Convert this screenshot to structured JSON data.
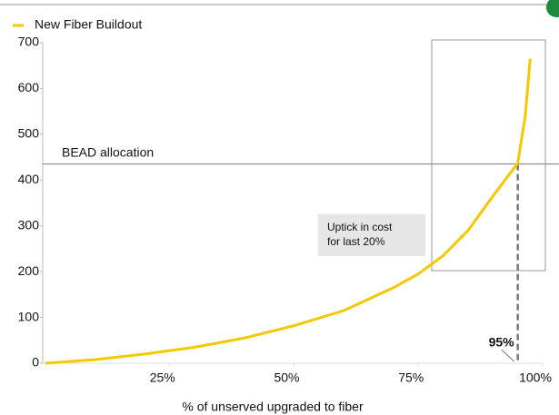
{
  "chart_data": {
    "type": "line",
    "x_label": "% of unserved upgraded to fiber",
    "x": [
      0,
      10,
      20,
      30,
      40,
      50,
      60,
      70,
      75,
      80,
      85,
      90,
      95,
      96.5,
      97.5
    ],
    "series": [
      {
        "name": "New Fiber Buildout",
        "color": "#f5c800",
        "values": [
          0,
          8,
          20,
          35,
          55,
          82,
          115,
          165,
          195,
          235,
          290,
          365,
          437,
          540,
          665
        ]
      }
    ],
    "xlim": [
      0,
      100
    ],
    "xticks": [
      {
        "value": 25,
        "label": "25%"
      },
      {
        "value": 50,
        "label": "50%"
      },
      {
        "value": 75,
        "label": "75%"
      },
      {
        "value": 100,
        "label": "100%"
      }
    ],
    "ylim": [
      0,
      700
    ],
    "yticks": [
      0,
      100,
      200,
      300,
      400,
      500,
      600,
      700
    ],
    "reference_line": {
      "label": "BEAD allocation",
      "value": 435
    },
    "marker": {
      "value": 95,
      "label": "95%"
    },
    "callout": [
      "Uptick in cost",
      "for last 20%"
    ],
    "legend": "top-left"
  }
}
